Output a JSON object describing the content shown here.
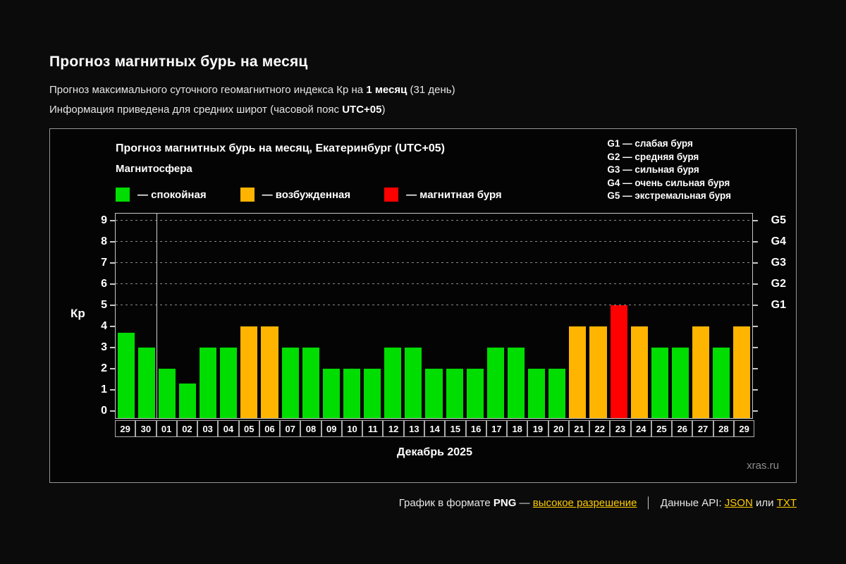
{
  "page": {
    "title": "Прогноз магнитных бурь на месяц",
    "subtitle1": {
      "pre": "Прогноз максимального суточного геомагнитного индекса Кр на ",
      "bold": "1 месяц",
      "post": " (31 день)"
    },
    "subtitle2": {
      "pre": "Информация приведена для средних широт (часовой пояс ",
      "bold": "UTC+05",
      "post": ")"
    }
  },
  "chart": {
    "title": "Прогноз магнитных бурь на месяц, Екатеринбург (UTC+05)",
    "legend_title": "Магнитосфера",
    "legend": [
      {
        "name": "quiet",
        "label": "— спокойная",
        "color": "#00dd00"
      },
      {
        "name": "excited",
        "label": "— возбужденная",
        "color": "#ffb400"
      },
      {
        "name": "storm",
        "label": "— магнитная буря",
        "color": "#ff0000"
      }
    ],
    "g_scale_legend": [
      "G1 — слабая буря",
      "G2 — средняя буря",
      "G3 — сильная буря",
      "G4 — очень сильная буря",
      "G5 — экстремальная буря"
    ],
    "watermark": "xras.ru"
  },
  "chart_data": {
    "type": "bar",
    "title": "Прогноз магнитных бурь на месяц, Екатеринбург (UTC+05)",
    "ylabel": "Кр",
    "xlabel": "Декабрь 2025",
    "ylim": [
      0,
      9
    ],
    "grid": "dashed horizontal lines at Kp 5,6,7,8,9",
    "legend_position": "top",
    "categories": [
      "29",
      "30",
      "01",
      "02",
      "03",
      "04",
      "05",
      "06",
      "07",
      "08",
      "09",
      "10",
      "11",
      "12",
      "13",
      "14",
      "15",
      "16",
      "17",
      "18",
      "19",
      "20",
      "21",
      "22",
      "23",
      "24",
      "25",
      "26",
      "27",
      "28",
      "29"
    ],
    "values": [
      3.7,
      3,
      2,
      1.3,
      3,
      3,
      4,
      4,
      3,
      3,
      2,
      2,
      2,
      3,
      3,
      2,
      2,
      2,
      3,
      3,
      2,
      2,
      4,
      4,
      5,
      4,
      3,
      3,
      4,
      3,
      4
    ],
    "statuses": [
      "quiet",
      "quiet",
      "quiet",
      "quiet",
      "quiet",
      "quiet",
      "excited",
      "excited",
      "quiet",
      "quiet",
      "quiet",
      "quiet",
      "quiet",
      "quiet",
      "quiet",
      "quiet",
      "quiet",
      "quiet",
      "quiet",
      "quiet",
      "quiet",
      "quiet",
      "excited",
      "excited",
      "storm",
      "excited",
      "quiet",
      "quiet",
      "excited",
      "quiet",
      "excited"
    ],
    "status_colors": {
      "quiet": "#00dd00",
      "excited": "#ffb400",
      "storm": "#ff0000"
    },
    "left_axis_ticks": [
      0,
      1,
      2,
      3,
      4,
      5,
      6,
      7,
      8,
      9
    ],
    "right_axis_ticks": [
      {
        "value": 5,
        "label": "G1"
      },
      {
        "value": 6,
        "label": "G2"
      },
      {
        "value": 7,
        "label": "G3"
      },
      {
        "value": 8,
        "label": "G4"
      },
      {
        "value": 9,
        "label": "G5"
      }
    ],
    "separator_after_index": 1
  },
  "footer": {
    "text1": "График в формате ",
    "png": "PNG",
    "dash": " — ",
    "link_highres": "высокое разрешение",
    "pipe": "│",
    "text2": "Данные API: ",
    "link_json": "JSON",
    "text3": " или ",
    "link_txt": "TXT"
  }
}
